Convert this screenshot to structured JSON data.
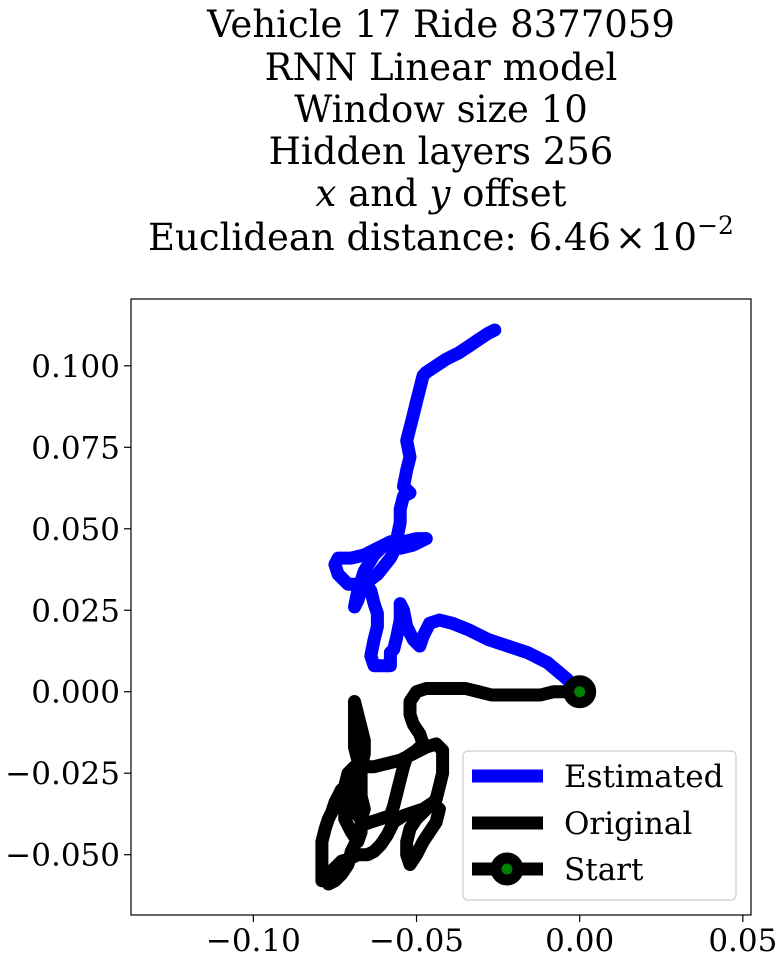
{
  "chart_data": {
    "type": "line",
    "title_lines": [
      "Vehicle 17 Ride 8377059",
      "RNN Linear model",
      "Window size 10",
      "Hidden layers 256"
    ],
    "offset_line": {
      "var_x": "x",
      "and": " and ",
      "var_y": "y",
      "suffix": " offset"
    },
    "distance_line": {
      "prefix": "Euclidean distance: ",
      "mantissa": "6.46",
      "times": "×",
      "base": "10",
      "exponent": "−2"
    },
    "xlabel": "",
    "ylabel": "",
    "xlim": [
      -0.1375,
      0.0525
    ],
    "ylim": [
      -0.0685,
      0.1205
    ],
    "x_ticks": [
      {
        "value": -0.1,
        "label": "−0.10"
      },
      {
        "value": -0.05,
        "label": "−0.05"
      },
      {
        "value": 0.0,
        "label": "0.00"
      },
      {
        "value": 0.05,
        "label": "0.05"
      }
    ],
    "y_ticks": [
      {
        "value": 0.1,
        "label": "0.100"
      },
      {
        "value": 0.075,
        "label": "0.075"
      },
      {
        "value": 0.05,
        "label": "0.050"
      },
      {
        "value": 0.025,
        "label": "0.025"
      },
      {
        "value": 0.0,
        "label": "0.000"
      },
      {
        "value": -0.025,
        "label": "−0.025"
      },
      {
        "value": -0.05,
        "label": "−0.050"
      }
    ],
    "grid": false,
    "legend_position": "lower-right",
    "series": [
      {
        "name": "Estimated",
        "color": "#0000ff",
        "points": [
          [
            0.0,
            0.0
          ],
          [
            -0.004,
            0.004
          ],
          [
            -0.01,
            0.009
          ],
          [
            -0.016,
            0.012
          ],
          [
            -0.022,
            0.014
          ],
          [
            -0.028,
            0.016
          ],
          [
            -0.034,
            0.019
          ],
          [
            -0.039,
            0.021
          ],
          [
            -0.043,
            0.022
          ],
          [
            -0.046,
            0.021
          ],
          [
            -0.048,
            0.017
          ],
          [
            -0.049,
            0.014
          ],
          [
            -0.051,
            0.016
          ],
          [
            -0.053,
            0.02
          ],
          [
            -0.054,
            0.025
          ],
          [
            -0.055,
            0.027
          ],
          [
            -0.055,
            0.022
          ],
          [
            -0.056,
            0.017
          ],
          [
            -0.057,
            0.013
          ],
          [
            -0.058,
            0.012
          ],
          [
            -0.058,
            0.008
          ],
          [
            -0.059,
            0.008
          ],
          [
            -0.061,
            0.008
          ],
          [
            -0.063,
            0.008
          ],
          [
            -0.064,
            0.011
          ],
          [
            -0.063,
            0.016
          ],
          [
            -0.062,
            0.02
          ],
          [
            -0.062,
            0.024
          ],
          [
            -0.063,
            0.027
          ],
          [
            -0.064,
            0.031
          ],
          [
            -0.066,
            0.034
          ],
          [
            -0.068,
            0.028
          ],
          [
            -0.069,
            0.026
          ],
          [
            -0.068,
            0.031
          ],
          [
            -0.066,
            0.037
          ],
          [
            -0.063,
            0.042
          ],
          [
            -0.06,
            0.045
          ],
          [
            -0.058,
            0.046
          ],
          [
            -0.056,
            0.045
          ],
          [
            -0.058,
            0.041
          ],
          [
            -0.062,
            0.036
          ],
          [
            -0.066,
            0.033
          ],
          [
            -0.071,
            0.033
          ],
          [
            -0.074,
            0.036
          ],
          [
            -0.075,
            0.039
          ],
          [
            -0.074,
            0.041
          ],
          [
            -0.07,
            0.041
          ],
          [
            -0.066,
            0.042
          ],
          [
            -0.062,
            0.044
          ],
          [
            -0.058,
            0.046
          ],
          [
            -0.054,
            0.046
          ],
          [
            -0.05,
            0.047
          ],
          [
            -0.047,
            0.047
          ],
          [
            -0.051,
            0.045
          ],
          [
            -0.055,
            0.044
          ],
          [
            -0.056,
            0.047
          ],
          [
            -0.055,
            0.052
          ],
          [
            -0.055,
            0.056
          ],
          [
            -0.054,
            0.06
          ],
          [
            -0.052,
            0.061
          ],
          [
            -0.054,
            0.063
          ],
          [
            -0.053,
            0.068
          ],
          [
            -0.052,
            0.072
          ],
          [
            -0.053,
            0.077
          ],
          [
            -0.052,
            0.081
          ],
          [
            -0.051,
            0.085
          ],
          [
            -0.05,
            0.089
          ],
          [
            -0.049,
            0.093
          ],
          [
            -0.048,
            0.097
          ],
          [
            -0.047,
            0.098
          ],
          [
            -0.044,
            0.1
          ],
          [
            -0.041,
            0.102
          ],
          [
            -0.037,
            0.104
          ],
          [
            -0.034,
            0.106
          ],
          [
            -0.031,
            0.108
          ],
          [
            -0.028,
            0.11
          ],
          [
            -0.026,
            0.111
          ]
        ]
      },
      {
        "name": "Original",
        "color": "#000000",
        "points": [
          [
            0.0,
            0.0
          ],
          [
            -0.004,
            0.0
          ],
          [
            -0.008,
            0.0
          ],
          [
            -0.012,
            -0.001
          ],
          [
            -0.016,
            -0.001
          ],
          [
            -0.02,
            -0.001
          ],
          [
            -0.024,
            -0.001
          ],
          [
            -0.027,
            -0.001
          ],
          [
            -0.031,
            0.0
          ],
          [
            -0.035,
            0.001
          ],
          [
            -0.039,
            0.001
          ],
          [
            -0.043,
            0.001
          ],
          [
            -0.047,
            0.001
          ],
          [
            -0.05,
            0.0
          ],
          [
            -0.052,
            -0.003
          ],
          [
            -0.052,
            -0.007
          ],
          [
            -0.051,
            -0.01
          ],
          [
            -0.049,
            -0.013
          ],
          [
            -0.048,
            -0.016
          ],
          [
            -0.05,
            -0.018
          ],
          [
            -0.053,
            -0.02
          ],
          [
            -0.054,
            -0.023
          ],
          [
            -0.055,
            -0.027
          ],
          [
            -0.056,
            -0.031
          ],
          [
            -0.057,
            -0.035
          ],
          [
            -0.058,
            -0.038
          ],
          [
            -0.061,
            -0.039
          ],
          [
            -0.064,
            -0.04
          ],
          [
            -0.067,
            -0.041
          ],
          [
            -0.068,
            -0.045
          ],
          [
            -0.07,
            -0.049
          ],
          [
            -0.071,
            -0.053
          ],
          [
            -0.073,
            -0.056
          ],
          [
            -0.075,
            -0.058
          ],
          [
            -0.077,
            -0.059
          ],
          [
            -0.076,
            -0.055
          ],
          [
            -0.073,
            -0.052
          ],
          [
            -0.07,
            -0.051
          ],
          [
            -0.068,
            -0.05
          ],
          [
            -0.065,
            -0.05
          ],
          [
            -0.063,
            -0.049
          ],
          [
            -0.061,
            -0.047
          ],
          [
            -0.059,
            -0.044
          ],
          [
            -0.057,
            -0.04
          ],
          [
            -0.054,
            -0.038
          ],
          [
            -0.051,
            -0.037
          ],
          [
            -0.048,
            -0.036
          ],
          [
            -0.045,
            -0.034
          ],
          [
            -0.043,
            -0.036
          ],
          [
            -0.044,
            -0.04
          ],
          [
            -0.046,
            -0.043
          ],
          [
            -0.048,
            -0.046
          ],
          [
            -0.05,
            -0.05
          ],
          [
            -0.052,
            -0.053
          ],
          [
            -0.053,
            -0.05
          ],
          [
            -0.053,
            -0.046
          ],
          [
            -0.052,
            -0.042
          ],
          [
            -0.05,
            -0.039
          ],
          [
            -0.048,
            -0.037
          ],
          [
            -0.046,
            -0.035
          ],
          [
            -0.044,
            -0.033
          ],
          [
            -0.043,
            -0.029
          ],
          [
            -0.042,
            -0.025
          ],
          [
            -0.042,
            -0.021
          ],
          [
            -0.042,
            -0.018
          ],
          [
            -0.044,
            -0.016
          ],
          [
            -0.047,
            -0.017
          ],
          [
            -0.051,
            -0.019
          ],
          [
            -0.055,
            -0.021
          ],
          [
            -0.059,
            -0.022
          ],
          [
            -0.063,
            -0.023
          ],
          [
            -0.066,
            -0.023
          ],
          [
            -0.069,
            -0.023
          ],
          [
            -0.071,
            -0.025
          ],
          [
            -0.072,
            -0.029
          ],
          [
            -0.071,
            -0.033
          ],
          [
            -0.069,
            -0.037
          ],
          [
            -0.067,
            -0.039
          ],
          [
            -0.066,
            -0.036
          ],
          [
            -0.067,
            -0.032
          ],
          [
            -0.069,
            -0.03
          ],
          [
            -0.071,
            -0.031
          ],
          [
            -0.072,
            -0.035
          ],
          [
            -0.072,
            -0.039
          ],
          [
            -0.07,
            -0.043
          ],
          [
            -0.068,
            -0.046
          ],
          [
            -0.067,
            -0.043
          ],
          [
            -0.067,
            -0.038
          ],
          [
            -0.067,
            -0.034
          ],
          [
            -0.067,
            -0.029
          ],
          [
            -0.067,
            -0.025
          ],
          [
            -0.068,
            -0.021
          ],
          [
            -0.069,
            -0.017
          ],
          [
            -0.069,
            -0.013
          ],
          [
            -0.069,
            -0.009
          ],
          [
            -0.069,
            -0.005
          ],
          [
            -0.069,
            -0.003
          ],
          [
            -0.068,
            -0.007
          ],
          [
            -0.067,
            -0.011
          ],
          [
            -0.066,
            -0.015
          ],
          [
            -0.066,
            -0.019
          ],
          [
            -0.067,
            -0.023
          ],
          [
            -0.068,
            -0.026
          ],
          [
            -0.07,
            -0.028
          ],
          [
            -0.073,
            -0.03
          ],
          [
            -0.075,
            -0.034
          ],
          [
            -0.076,
            -0.037
          ],
          [
            -0.077,
            -0.039
          ],
          [
            -0.078,
            -0.042
          ],
          [
            -0.079,
            -0.046
          ],
          [
            -0.079,
            -0.05
          ],
          [
            -0.079,
            -0.054
          ],
          [
            -0.079,
            -0.058
          ]
        ]
      }
    ],
    "start_marker": {
      "name": "Start",
      "x": 0.0,
      "y": 0.0,
      "face_color": "#008000",
      "edge_color": "#000000"
    }
  }
}
